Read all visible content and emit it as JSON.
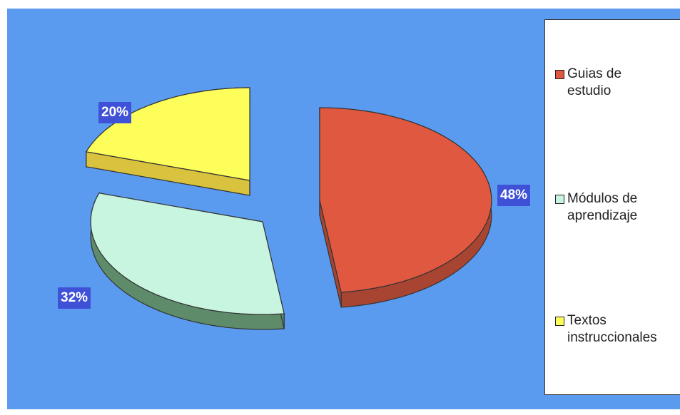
{
  "chart_data": {
    "type": "pie",
    "categories": [
      "Guías de estudio",
      "Módulos de aprendizaje",
      "Textos instruccionales"
    ],
    "values": [
      48,
      32,
      20
    ],
    "data_labels": [
      "48%",
      "32%",
      "20%"
    ],
    "legend_position": "right",
    "exploded": true,
    "three_d": true
  },
  "legend": {
    "items": [
      {
        "label": "Guias de\nestudio",
        "color": "#e0583f"
      },
      {
        "label": "Módulos de\naprendizaje",
        "color": "#c8f5df"
      },
      {
        "label": "Textos\ninstruccionales",
        "color": "#fefe5a"
      }
    ]
  },
  "colors": {
    "background": "#5b9bef",
    "label_box": "#3f51d7",
    "guias_top": "#e0583f",
    "guias_side": "#a84532",
    "modulos_top": "#c8f5df",
    "modulos_side": "#5e8c6a",
    "textos_top": "#fefe5a",
    "textos_side": "#d8c23e"
  }
}
